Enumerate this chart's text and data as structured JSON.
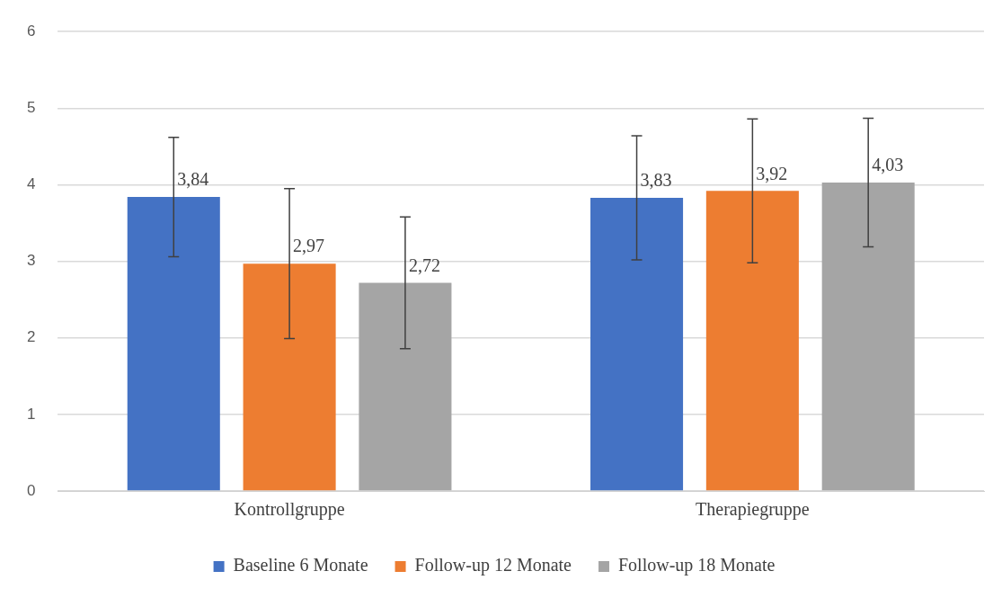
{
  "chart_data": {
    "type": "bar",
    "categories": [
      "Kontrollgruppe",
      "Therapiegruppe"
    ],
    "series": [
      {
        "name": "Baseline 6 Monate",
        "color": "#4472c4",
        "values": [
          3.84,
          3.83
        ],
        "errors": [
          0.78,
          0.81
        ],
        "value_labels": [
          "3,84",
          "3,83"
        ]
      },
      {
        "name": "Follow-up 12 Monate",
        "color": "#ed7d31",
        "values": [
          2.97,
          3.92
        ],
        "errors": [
          0.98,
          0.94
        ],
        "value_labels": [
          "2,97",
          "3,92"
        ]
      },
      {
        "name": "Follow-up 18 Monate",
        "color": "#a5a5a5",
        "values": [
          2.72,
          4.03
        ],
        "errors": [
          0.86,
          0.84
        ],
        "value_labels": [
          "2,72",
          "4,03"
        ]
      }
    ],
    "ylim": [
      0,
      6
    ],
    "yticks": [
      0,
      1,
      2,
      3,
      4,
      5,
      6
    ],
    "grid": "y",
    "legend": "bottom"
  }
}
